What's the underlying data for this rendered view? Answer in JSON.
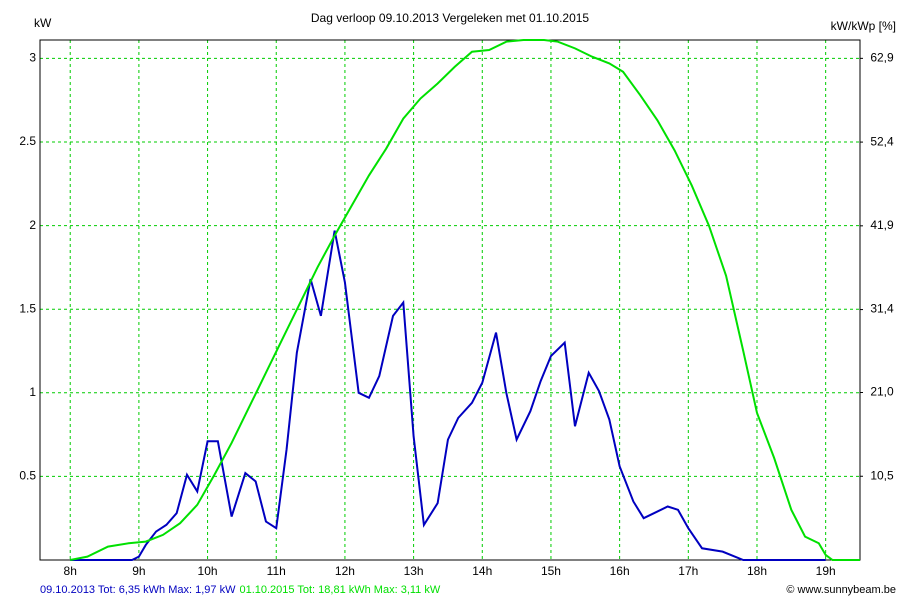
{
  "chart_data": {
    "type": "line",
    "title": "Dag  verloop 09.10.2013    Vergeleken met 01.10.2015",
    "y_label": "kW",
    "y2_label": "kW/kWp [%]",
    "credit": "© www.sunnybeam.be",
    "xlim": [
      7.56,
      19.5
    ],
    "ylim": [
      0,
      3.11
    ],
    "y2lim": [
      0,
      65.2
    ],
    "grid": true,
    "grid_color": "#00cc00",
    "xticks": [
      {
        "value": 8,
        "label": "8h"
      },
      {
        "value": 9,
        "label": "9h"
      },
      {
        "value": 10,
        "label": "10h"
      },
      {
        "value": 11,
        "label": "11h"
      },
      {
        "value": 12,
        "label": "12h"
      },
      {
        "value": 13,
        "label": "13h"
      },
      {
        "value": 14,
        "label": "14h"
      },
      {
        "value": 15,
        "label": "15h"
      },
      {
        "value": 16,
        "label": "16h"
      },
      {
        "value": 17,
        "label": "17h"
      },
      {
        "value": 18,
        "label": "18h"
      },
      {
        "value": 19,
        "label": "19h"
      }
    ],
    "yticks": [
      0.5,
      1,
      1.5,
      2,
      2.5,
      3
    ],
    "y2ticks": [
      {
        "value": 10.5,
        "label": "10,5"
      },
      {
        "value": 21.0,
        "label": "21,0"
      },
      {
        "value": 31.4,
        "label": "31,4"
      },
      {
        "value": 41.9,
        "label": "41,9"
      },
      {
        "value": 52.4,
        "label": "52,4"
      },
      {
        "value": 62.9,
        "label": "62,9"
      }
    ],
    "series": [
      {
        "name": "09.10.2013 Tot: 6,35 kWh Max: 1,97 kW",
        "color": "#0000c0",
        "x": [
          8.0,
          8.9,
          9.0,
          9.1,
          9.25,
          9.4,
          9.55,
          9.7,
          9.85,
          10.0,
          10.15,
          10.35,
          10.55,
          10.7,
          10.85,
          11.0,
          11.15,
          11.3,
          11.5,
          11.65,
          11.85,
          12.0,
          12.2,
          12.35,
          12.5,
          12.7,
          12.85,
          13.0,
          13.15,
          13.35,
          13.5,
          13.65,
          13.85,
          14.0,
          14.2,
          14.35,
          14.5,
          14.7,
          14.85,
          15.0,
          15.2,
          15.35,
          15.55,
          15.7,
          15.85,
          16.0,
          16.2,
          16.35,
          16.5,
          16.7,
          16.85,
          17.0,
          17.2,
          17.5,
          17.8,
          19.0
        ],
        "values": [
          0,
          0,
          0.02,
          0.09,
          0.17,
          0.21,
          0.28,
          0.51,
          0.41,
          0.71,
          0.71,
          0.26,
          0.52,
          0.47,
          0.23,
          0.19,
          0.66,
          1.24,
          1.68,
          1.46,
          1.97,
          1.66,
          1.0,
          0.97,
          1.1,
          1.46,
          1.54,
          0.74,
          0.21,
          0.34,
          0.72,
          0.85,
          0.94,
          1.06,
          1.36,
          1.0,
          0.72,
          0.89,
          1.07,
          1.22,
          1.3,
          0.8,
          1.12,
          1.01,
          0.84,
          0.56,
          0.35,
          0.25,
          0.28,
          0.32,
          0.3,
          0.19,
          0.07,
          0.05,
          0,
          0
        ]
      },
      {
        "name": "01.10.2015 Tot: 18,81 kWh Max: 3,11 kW",
        "color": "#00e000",
        "x": [
          8.0,
          8.25,
          8.55,
          8.85,
          9.1,
          9.35,
          9.6,
          9.85,
          10.1,
          10.35,
          10.6,
          10.85,
          11.1,
          11.35,
          11.6,
          11.85,
          12.1,
          12.35,
          12.6,
          12.85,
          13.1,
          13.35,
          13.6,
          13.85,
          14.1,
          14.35,
          14.6,
          14.9,
          15.1,
          15.35,
          15.6,
          15.85,
          16.05,
          16.3,
          16.55,
          16.8,
          17.05,
          17.3,
          17.55,
          17.8,
          18.0,
          18.25,
          18.5,
          18.7,
          18.9,
          19.0,
          19.1,
          19.5
        ],
        "values": [
          0,
          0.02,
          0.08,
          0.1,
          0.11,
          0.15,
          0.22,
          0.33,
          0.51,
          0.7,
          0.91,
          1.12,
          1.33,
          1.54,
          1.75,
          1.94,
          2.12,
          2.3,
          2.46,
          2.64,
          2.76,
          2.85,
          2.95,
          3.04,
          3.05,
          3.1,
          3.11,
          3.11,
          3.1,
          3.06,
          3.01,
          2.97,
          2.92,
          2.78,
          2.63,
          2.45,
          2.24,
          2.0,
          1.7,
          1.25,
          0.88,
          0.61,
          0.3,
          0.14,
          0.1,
          0.03,
          0,
          0
        ]
      }
    ]
  }
}
